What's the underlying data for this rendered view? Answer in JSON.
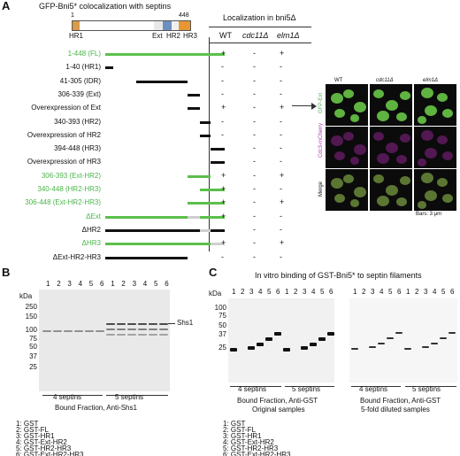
{
  "panel_a": {
    "letter": "A",
    "title": "GFP-Bni5* colocalization with septins",
    "domain_start": "1",
    "domain_end": "448",
    "domain_labels": [
      "HR1",
      "Ext",
      "HR2",
      "HR3"
    ],
    "localization_title": "Localization in bni5Δ",
    "columns": [
      "WT",
      "cdc11Δ",
      "elm1Δ"
    ],
    "constructs": [
      {
        "label": "1-448 (FL)",
        "green": true,
        "wt": "+",
        "cdc11": "-",
        "elm1": "+"
      },
      {
        "label": "1-40 (HR1)",
        "green": false,
        "wt": "-",
        "cdc11": "-",
        "elm1": "-"
      },
      {
        "label": "41-305 (IDR)",
        "green": false,
        "wt": "-",
        "cdc11": "-",
        "elm1": "-"
      },
      {
        "label": "306-339 (Ext)",
        "green": false,
        "wt": "-",
        "cdc11": "-",
        "elm1": "-"
      },
      {
        "label": "Overexpression of Ext",
        "green": false,
        "wt": "+",
        "cdc11": "-",
        "elm1": "+"
      },
      {
        "label": "340-393 (HR2)",
        "green": false,
        "wt": "-",
        "cdc11": "-",
        "elm1": "-"
      },
      {
        "label": "Overexpression of HR2",
        "green": false,
        "wt": "-",
        "cdc11": "-",
        "elm1": "-"
      },
      {
        "label": "394-448 (HR3)",
        "green": false,
        "wt": "-",
        "cdc11": "-",
        "elm1": "-"
      },
      {
        "label": "Overexpression of HR3",
        "green": false,
        "wt": "-",
        "cdc11": "-",
        "elm1": "-"
      },
      {
        "label": "306-393 (Ext-HR2)",
        "green": true,
        "wt": "+",
        "cdc11": "-",
        "elm1": "+"
      },
      {
        "label": "340-448 (HR2-HR3)",
        "green": true,
        "wt": "+",
        "cdc11": "-",
        "elm1": "-"
      },
      {
        "label": "306-448 (Ext-HR2-HR3)",
        "green": true,
        "wt": "+",
        "cdc11": "-",
        "elm1": "+"
      },
      {
        "label": "ΔExt",
        "green": true,
        "wt": "+",
        "cdc11": "-",
        "elm1": "-"
      },
      {
        "label": "ΔHR2",
        "green": false,
        "wt": "-",
        "cdc11": "-",
        "elm1": "-"
      },
      {
        "label": "ΔHR3",
        "green": true,
        "wt": "+",
        "cdc11": "-",
        "elm1": "+"
      },
      {
        "label": "ΔExt-HR2-HR3",
        "green": false,
        "wt": "-",
        "cdc11": "-",
        "elm1": "-"
      }
    ],
    "micro_cols": [
      "WT",
      "cdc11Δ",
      "elm1Δ"
    ],
    "micro_rows": [
      "GFP-Ext",
      "Cdc3-mCherry",
      "Merge"
    ],
    "scale": "Bars: 3 μm"
  },
  "panel_b": {
    "letter": "B",
    "lanes": [
      "1",
      "2",
      "3",
      "4",
      "5",
      "6",
      "1",
      "2",
      "3",
      "4",
      "5",
      "6"
    ],
    "kda_label": "kDa",
    "markers": [
      "250",
      "150",
      "100",
      "75",
      "50",
      "37",
      "25"
    ],
    "band_label": "Shs1",
    "groups": [
      "4 septins",
      "5 septins"
    ],
    "caption": "Bound Fraction, Anti-Shs1",
    "legend": [
      "1: GST",
      "2: GST-FL",
      "3: GST-HR1",
      "4: GST-Ext-HR2",
      "5: GST-HR2-HR3",
      "6: GST-Ext-HR2-HR3"
    ]
  },
  "panel_c": {
    "letter": "C",
    "title": "In vitro binding of GST-Bni5* to septin filaments",
    "kda_label": "kDa",
    "markers": [
      "100",
      "75",
      "50",
      "37",
      "25"
    ],
    "lanes": [
      "1",
      "2",
      "3",
      "4",
      "5",
      "6",
      "1",
      "2",
      "3",
      "4",
      "5",
      "6"
    ],
    "groups": [
      "4 septins",
      "5 septins"
    ],
    "caption_left": [
      "Bound Fraction, Anti-GST",
      "Original samples"
    ],
    "caption_right": [
      "Bound Fraction, Anti-GST",
      "5-fold diluted samples"
    ],
    "legend": [
      "1: GST",
      "2: GST-FL",
      "3: GST-HR1",
      "4: GST-Ext-HR2",
      "5: GST-HR2-HR3",
      "6: GST-Ext-HR2-HR3"
    ]
  }
}
